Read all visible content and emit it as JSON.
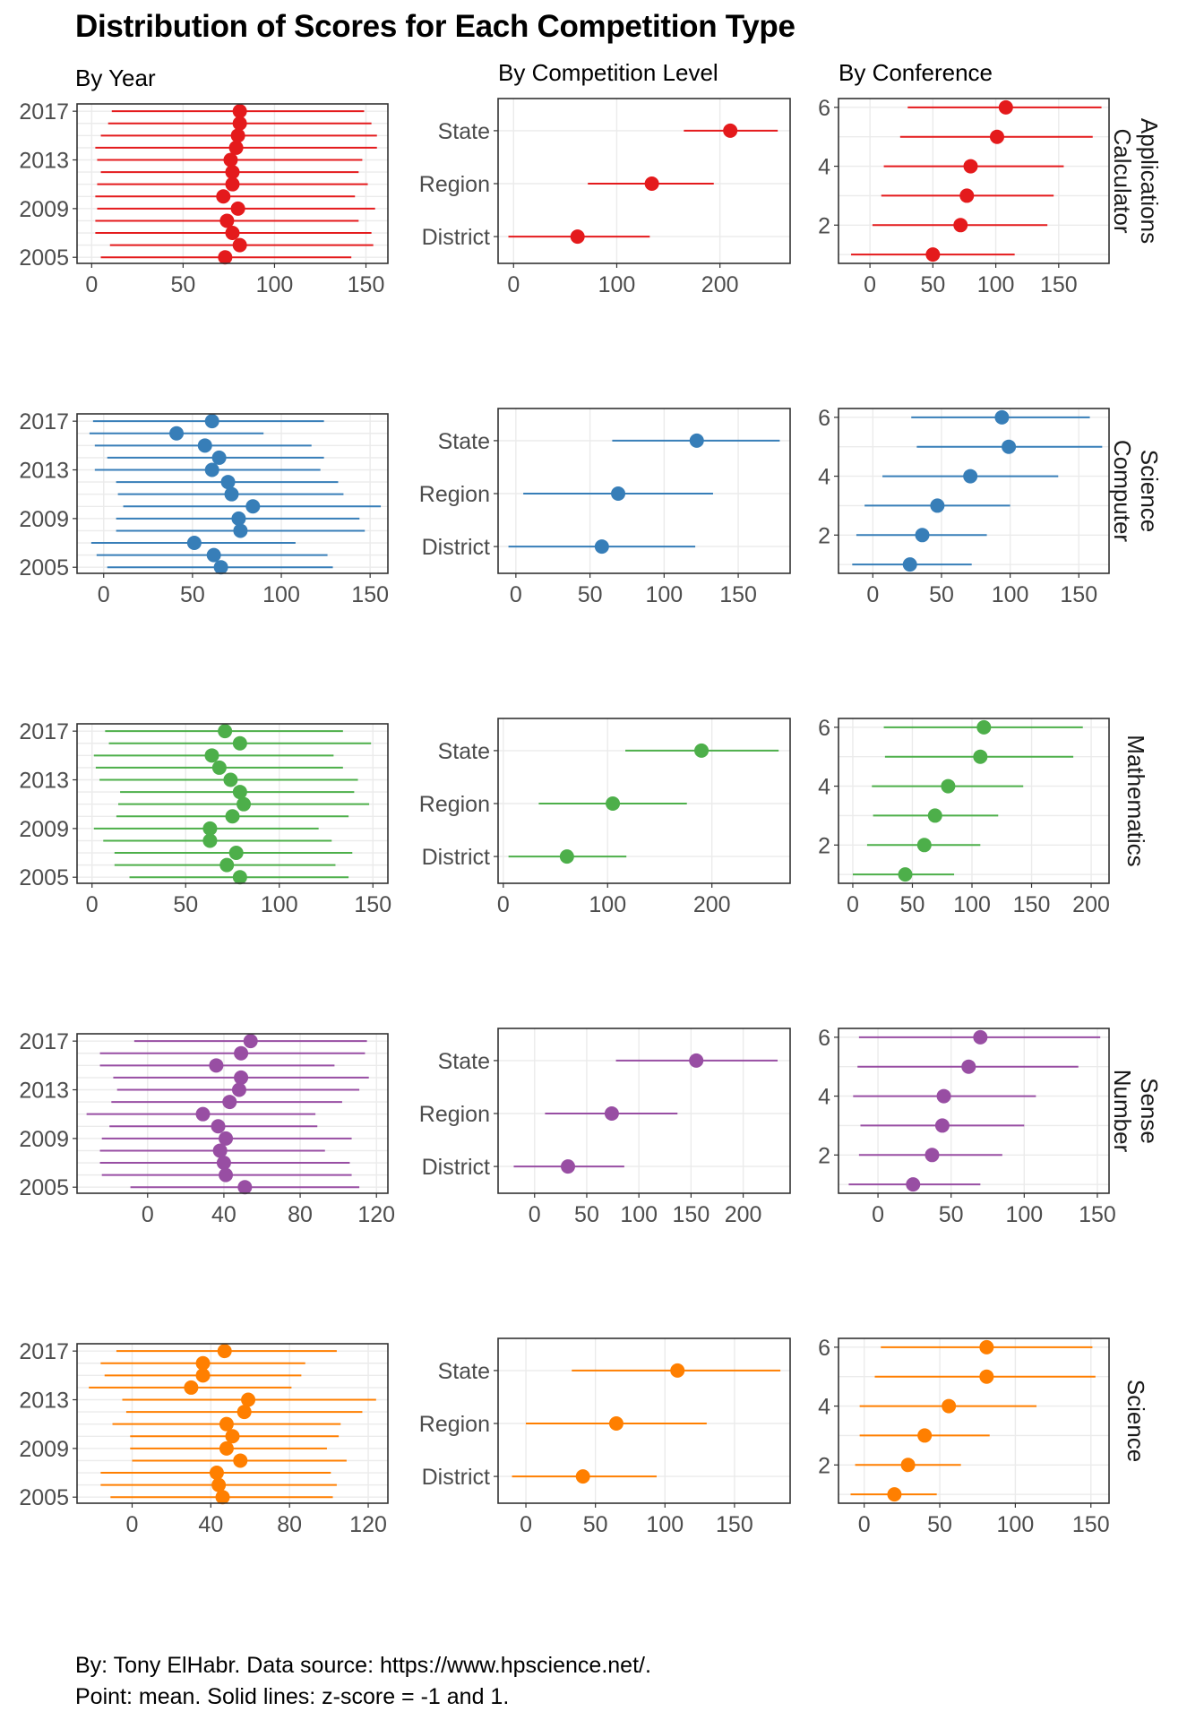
{
  "title": "Distribution of Scores for Each Competition Type",
  "subtitles": {
    "by_year": "By Year",
    "by_level": "By Competition Level",
    "by_conference": "By Conference"
  },
  "caption": {
    "line1": "By: Tony ElHabr. Data source: https://www.hpscience.net/.",
    "line2": "Point: mean. Solid lines: z-score = -1 and 1."
  },
  "chart_data": {
    "type": "scatter",
    "point": "mean",
    "interval": "z-score = -1 and 1",
    "years": [
      2005,
      2006,
      2007,
      2008,
      2009,
      2010,
      2011,
      2012,
      2013,
      2014,
      2015,
      2016,
      2017
    ],
    "levels": [
      "District",
      "Region",
      "State"
    ],
    "conferences": [
      1,
      2,
      3,
      4,
      5,
      6
    ],
    "panels": [
      {
        "competition": "Calculator Applications",
        "strip_label": [
          "Calculator",
          "Applications"
        ],
        "color": "#e41a1c",
        "by_year": {
          "ylim": [
            2004.5,
            2017.6
          ],
          "xlim": [
            -8,
            162
          ],
          "x_ticks": [
            0,
            50,
            100,
            150
          ],
          "y_ticks": [
            2005,
            2009,
            2013,
            2017
          ],
          "mean": [
            73,
            81,
            77,
            74,
            80,
            72,
            77,
            77,
            76,
            79,
            80,
            81,
            81
          ],
          "low": [
            5,
            10,
            2,
            2,
            3,
            2,
            3,
            5,
            3,
            2,
            5,
            9,
            11
          ],
          "high": [
            142,
            154,
            153,
            146,
            155,
            144,
            151,
            146,
            148,
            156,
            156,
            153,
            149
          ]
        },
        "by_level": {
          "xlim": [
            -15,
            268
          ],
          "x_ticks": [
            0,
            100,
            200
          ],
          "mean": [
            62,
            134,
            210
          ],
          "low": [
            -5,
            72,
            165
          ],
          "high": [
            132,
            194,
            256
          ]
        },
        "by_conference": {
          "ylim": [
            0.7,
            6.3
          ],
          "xlim": [
            -25,
            190
          ],
          "x_ticks": [
            0,
            50,
            100,
            150
          ],
          "y_ticks": [
            2,
            4,
            6
          ],
          "mean": [
            50,
            72,
            77,
            80,
            101,
            108
          ],
          "low": [
            -15,
            2,
            9,
            11,
            24,
            30
          ],
          "high": [
            115,
            141,
            146,
            154,
            177,
            184
          ]
        }
      },
      {
        "competition": "Computer Science",
        "strip_label": [
          "Computer",
          "Science"
        ],
        "color": "#377eb8",
        "by_year": {
          "ylim": [
            2004.5,
            2017.6
          ],
          "xlim": [
            -15,
            160
          ],
          "x_ticks": [
            0,
            50,
            100,
            150
          ],
          "y_ticks": [
            2005,
            2009,
            2013,
            2017
          ],
          "mean": [
            66,
            62,
            51,
            77,
            76,
            84,
            72,
            70,
            61,
            65,
            57,
            41,
            61
          ],
          "low": [
            2,
            -4,
            -7,
            7,
            7,
            11,
            8,
            7,
            -5,
            2,
            -5,
            -8,
            -6
          ],
          "high": [
            129,
            126,
            108,
            147,
            144,
            156,
            135,
            132,
            122,
            124,
            117,
            90,
            124
          ]
        },
        "by_level": {
          "xlim": [
            -12,
            185
          ],
          "x_ticks": [
            0,
            50,
            100,
            150
          ],
          "mean": [
            58,
            69,
            122
          ],
          "low": [
            -5,
            5,
            65
          ],
          "high": [
            121,
            133,
            178
          ]
        },
        "by_conference": {
          "ylim": [
            0.7,
            6.3
          ],
          "xlim": [
            -25,
            172
          ],
          "x_ticks": [
            0,
            50,
            100,
            150
          ],
          "y_ticks": [
            2,
            4,
            6
          ],
          "mean": [
            27,
            36,
            47,
            71,
            99,
            94
          ],
          "low": [
            -15,
            -12,
            -6,
            7,
            32,
            28
          ],
          "high": [
            72,
            83,
            100,
            135,
            167,
            158
          ]
        }
      },
      {
        "competition": "Mathematics",
        "strip_label": [
          "Mathematics"
        ],
        "color": "#4daf4a",
        "by_year": {
          "ylim": [
            2004.5,
            2017.6
          ],
          "xlim": [
            -8,
            158
          ],
          "x_ticks": [
            0,
            50,
            100,
            150
          ],
          "y_ticks": [
            2005,
            2009,
            2013,
            2017
          ],
          "mean": [
            79,
            72,
            77,
            63,
            63,
            75,
            81,
            79,
            74,
            68,
            64,
            79,
            71
          ],
          "low": [
            20,
            12,
            12,
            6,
            1,
            13,
            14,
            15,
            4,
            2,
            1,
            9,
            7
          ],
          "high": [
            137,
            130,
            139,
            128,
            121,
            137,
            148,
            140,
            142,
            134,
            129,
            149,
            134
          ]
        },
        "by_level": {
          "xlim": [
            -5,
            275
          ],
          "x_ticks": [
            0,
            100,
            200
          ],
          "mean": [
            61,
            105,
            190
          ],
          "low": [
            5,
            34,
            117
          ],
          "high": [
            118,
            176,
            264
          ]
        },
        "by_conference": {
          "ylim": [
            0.7,
            6.3
          ],
          "xlim": [
            -12,
            215
          ],
          "x_ticks": [
            0,
            50,
            100,
            150,
            200
          ],
          "y_ticks": [
            2,
            4,
            6
          ],
          "mean": [
            44,
            60,
            69,
            80,
            107,
            110
          ],
          "low": [
            0,
            12,
            17,
            16,
            27,
            26
          ],
          "high": [
            85,
            107,
            122,
            143,
            185,
            193
          ]
        }
      },
      {
        "competition": "Number Sense",
        "strip_label": [
          "Number",
          "Sense"
        ],
        "color": "#984ea3",
        "by_year": {
          "ylim": [
            2004.5,
            2017.6
          ],
          "xlim": [
            -37,
            126
          ],
          "x_ticks": [
            0,
            40,
            80,
            120
          ],
          "y_ticks": [
            2005,
            2009,
            2013,
            2017
          ],
          "mean": [
            51,
            41,
            40,
            38,
            41,
            37,
            29,
            43,
            48,
            49,
            36,
            49,
            54
          ],
          "low": [
            -9,
            -24,
            -25,
            -25,
            -24,
            -20,
            -32,
            -19,
            -16,
            -18,
            -25,
            -25,
            -7
          ],
          "high": [
            111,
            107,
            106,
            93,
            107,
            89,
            88,
            102,
            111,
            116,
            98,
            114,
            115
          ]
        },
        "by_level": {
          "xlim": [
            -35,
            245
          ],
          "x_ticks": [
            0,
            50,
            100,
            150,
            200
          ],
          "mean": [
            32,
            74,
            155
          ],
          "low": [
            -20,
            10,
            78
          ],
          "high": [
            86,
            137,
            233
          ]
        },
        "by_conference": {
          "ylim": [
            0.7,
            6.3
          ],
          "xlim": [
            -27,
            158
          ],
          "x_ticks": [
            0,
            50,
            100,
            150
          ],
          "y_ticks": [
            2,
            4,
            6
          ],
          "mean": [
            24,
            37,
            44,
            45,
            62,
            70
          ],
          "low": [
            -20,
            -13,
            -12,
            -17,
            -14,
            -13
          ],
          "high": [
            70,
            85,
            100,
            108,
            137,
            152
          ]
        }
      },
      {
        "competition": "Science",
        "strip_label": [
          "Science"
        ],
        "color": "#ff7f00",
        "by_year": {
          "ylim": [
            2004.5,
            2017.6
          ],
          "xlim": [
            -28,
            130
          ],
          "x_ticks": [
            0,
            40,
            80,
            120
          ],
          "y_ticks": [
            2005,
            2009,
            2013,
            2017
          ],
          "mean": [
            46,
            44,
            43,
            55,
            48,
            51,
            48,
            57,
            59,
            30,
            36,
            36,
            47
          ],
          "low": [
            -11,
            -16,
            -16,
            0,
            -1,
            -1,
            -10,
            -3,
            -5,
            -22,
            -14,
            -16,
            -8
          ],
          "high": [
            102,
            104,
            101,
            109,
            99,
            105,
            106,
            117,
            124,
            81,
            86,
            88,
            104
          ]
        },
        "by_level": {
          "xlim": [
            -20,
            190
          ],
          "x_ticks": [
            0,
            50,
            100,
            150
          ],
          "mean": [
            41,
            65,
            109
          ],
          "low": [
            -10,
            0,
            33
          ],
          "high": [
            94,
            130,
            183
          ]
        },
        "by_conference": {
          "ylim": [
            0.7,
            6.3
          ],
          "xlim": [
            -17,
            162
          ],
          "x_ticks": [
            0,
            50,
            100,
            150
          ],
          "y_ticks": [
            2,
            4,
            6
          ],
          "mean": [
            20,
            29,
            40,
            56,
            81,
            81
          ],
          "low": [
            -9,
            -6,
            -3,
            -3,
            7,
            11
          ],
          "high": [
            48,
            64,
            83,
            114,
            153,
            151
          ]
        }
      }
    ]
  }
}
